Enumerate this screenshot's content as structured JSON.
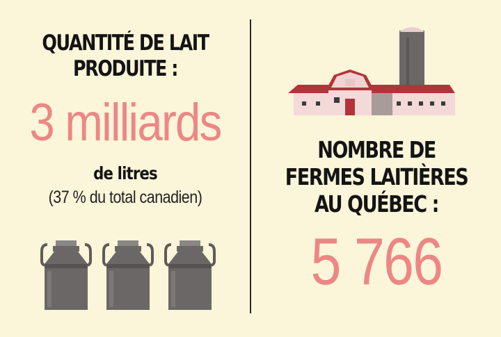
{
  "left": {
    "headline_line1": "QUANTITÉ DE LAIT",
    "headline_line2": "PRODUITE :",
    "big_value": "3 milliards",
    "unit": "de litres",
    "note": "(37 % du total canadien)",
    "icon": "milk-can-icon",
    "icon_count": 3
  },
  "right": {
    "headline_line1": "NOMBRE DE",
    "headline_line2": "FERMES LAITIÈRES",
    "headline_line3": "AU QUÉBEC :",
    "big_value": "5 766",
    "icon": "dairy-barn-icon"
  },
  "colors": {
    "background": "#fbf5d9",
    "accent": "#ec8785",
    "text": "#141414",
    "can": "#6b6766",
    "barn_roof": "#b2343a",
    "barn_wall": "#f4d9d9"
  }
}
